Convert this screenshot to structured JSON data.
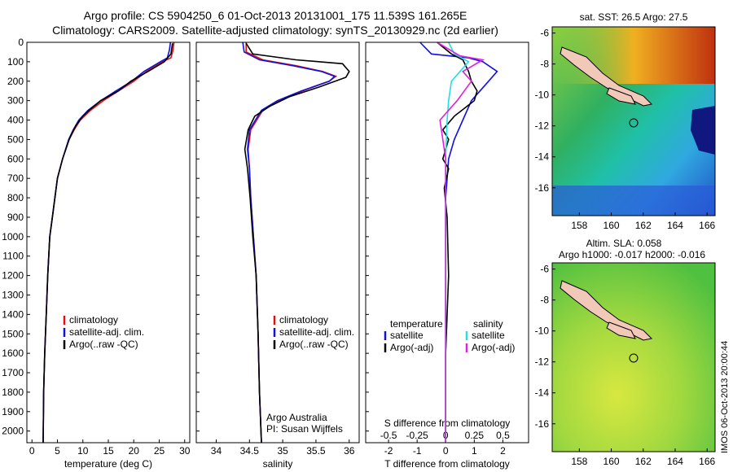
{
  "header": {
    "line1": "Argo profile: CS 5904250_6 01-Oct-2013 20131001_175 11.539S 161.265E",
    "line2": "Climatology: CARS2009. Satellite-adjusted climatology: synTS_20130929.nc (2d earlier)"
  },
  "side_label": "IMOS 06-Oct-2013 20:00:44",
  "map_sst": {
    "title": "sat. SST: 26.5 Argo: 27.5"
  },
  "map_sla": {
    "title1": "Altim. SLA: 0.058",
    "title2": "Argo h1000: -0.017 h2000: -0.016"
  },
  "colors": {
    "climatology": "#e01010",
    "satellite": "#1010e0",
    "argo": "#000000",
    "sal_satellite": "#20e0e0",
    "sal_argo": "#e020e0",
    "land": "#f2c8b8"
  },
  "chart_data": [
    {
      "type": "line",
      "xlabel": "temperature (deg C)",
      "xlim": [
        -1,
        31
      ],
      "ylim": [
        2060,
        0
      ],
      "xticks": [
        0,
        5,
        10,
        15,
        20,
        25,
        30
      ],
      "yticks": [
        0,
        100,
        200,
        300,
        400,
        500,
        600,
        700,
        800,
        900,
        1000,
        1100,
        1200,
        1300,
        1400,
        1500,
        1600,
        1700,
        1800,
        1900,
        2000
      ],
      "legend": [
        "climatology",
        "satellite-adj. clim.",
        "Argo(..raw -QC)"
      ],
      "series": [
        {
          "name": "climatology",
          "color": "#e01010",
          "x": [
            27.9,
            27.7,
            27.3,
            25.6,
            22.5,
            20.0,
            17.0,
            14.0,
            11.5,
            9.5,
            8.3,
            7.3,
            6.0,
            5.0,
            4.5,
            4.0,
            3.5,
            3.1,
            2.8,
            2.5,
            2.3,
            2.2
          ],
          "y": [
            0,
            40,
            80,
            100,
            150,
            200,
            250,
            300,
            350,
            400,
            450,
            500,
            600,
            700,
            800,
            900,
            1000,
            1200,
            1400,
            1600,
            1800,
            2060
          ]
        },
        {
          "name": "satellite-adj. clim.",
          "color": "#1010e0",
          "x": [
            27.2,
            27.0,
            26.6,
            25.2,
            22.0,
            19.6,
            16.5,
            13.5,
            11.0,
            9.2,
            8.1,
            7.2,
            6.0,
            5.0,
            4.5,
            4.0,
            3.5,
            3.1,
            2.8,
            2.5,
            2.3,
            2.2
          ],
          "y": [
            0,
            40,
            80,
            100,
            150,
            200,
            250,
            300,
            350,
            400,
            450,
            500,
            600,
            700,
            800,
            900,
            1000,
            1200,
            1400,
            1600,
            1800,
            2060
          ]
        },
        {
          "name": "Argo(..raw -QC)",
          "color": "#000000",
          "x": [
            27.6,
            27.3,
            26.0,
            22.8,
            19.4,
            17.0,
            13.5,
            11.2,
            10.0,
            8.6,
            8.0,
            7.3,
            6.0,
            5.0,
            4.5,
            4.0,
            3.5,
            3.1,
            2.8,
            2.5,
            2.3,
            2.2
          ],
          "y": [
            5,
            60,
            100,
            150,
            200,
            250,
            300,
            350,
            380,
            430,
            460,
            500,
            600,
            700,
            800,
            900,
            1000,
            1200,
            1400,
            1600,
            1800,
            2060
          ]
        }
      ]
    },
    {
      "type": "line",
      "xlabel": "salinity",
      "xlim": [
        33.7,
        36.15
      ],
      "ylim": [
        2060,
        0
      ],
      "xticks": [
        34,
        34.5,
        35,
        35.5,
        36
      ],
      "legend": [
        "climatology",
        "satellite-adj. clim.",
        "Argo(..raw -QC)"
      ],
      "annotation": [
        "Argo Australia",
        "PI: Susan Wijffels"
      ],
      "series": [
        {
          "name": "climatology",
          "color": "#e01010",
          "x": [
            34.45,
            34.45,
            34.7,
            35.2,
            35.6,
            35.8,
            35.7,
            35.3,
            34.95,
            34.7,
            34.52,
            34.48,
            34.5,
            34.52,
            34.56,
            34.6,
            34.63,
            34.65,
            34.68
          ],
          "y": [
            0,
            50,
            90,
            120,
            150,
            175,
            200,
            250,
            300,
            350,
            450,
            550,
            650,
            800,
            1000,
            1200,
            1500,
            1800,
            2060
          ]
        },
        {
          "name": "satellite-adj. clim.",
          "color": "#1010e0",
          "x": [
            34.4,
            34.42,
            34.65,
            35.15,
            35.58,
            35.78,
            35.7,
            35.28,
            34.92,
            34.68,
            34.5,
            34.47,
            34.5,
            34.52,
            34.56,
            34.6,
            34.63,
            34.65,
            34.68
          ],
          "y": [
            0,
            50,
            90,
            120,
            150,
            175,
            200,
            250,
            300,
            350,
            450,
            550,
            650,
            800,
            1000,
            1200,
            1500,
            1800,
            2060
          ]
        },
        {
          "name": "Argo(..raw -QC)",
          "color": "#000000",
          "x": [
            34.45,
            34.55,
            35.2,
            35.9,
            36.0,
            35.95,
            35.55,
            35.1,
            34.8,
            34.58,
            34.48,
            34.43,
            34.47,
            34.51,
            34.55,
            34.6,
            34.63,
            34.65,
            34.68
          ],
          "y": [
            5,
            60,
            90,
            110,
            150,
            180,
            230,
            280,
            330,
            380,
            450,
            550,
            650,
            800,
            1000,
            1200,
            1500,
            1800,
            2060
          ]
        }
      ]
    },
    {
      "type": "line",
      "xlabel": "T difference from climatology",
      "xlim": [
        -2.8,
        2.9
      ],
      "ylim": [
        2060,
        0
      ],
      "xticks": [
        -2,
        -1,
        0,
        1,
        2
      ],
      "top_axis_label": "S difference from climatology",
      "top_ticks": [
        "-0.5",
        "-0.25",
        "0",
        "0.25",
        "0.5"
      ],
      "legend_temperature_title": "temperature",
      "legend_salinity_title": "salinity",
      "legend": [
        "satellite",
        "Argo(-adj)",
        "satellite",
        "Argo(-adj)"
      ],
      "series": [
        {
          "name": "satellite",
          "color": "#1010e0",
          "x": [
            -0.9,
            -0.5,
            0.8,
            1.3,
            1.8,
            1.5,
            0.9,
            0.6,
            0.3,
            0.1,
            0.05,
            0,
            0,
            0
          ],
          "y": [
            0,
            60,
            80,
            100,
            150,
            200,
            300,
            400,
            500,
            600,
            700,
            800,
            1000,
            2060
          ]
        },
        {
          "name": "Argo(-adj)",
          "color": "#000000",
          "x": [
            -0.3,
            0.2,
            0.6,
            0.8,
            0.9,
            1.1,
            1.0,
            0.3,
            -0.1,
            0.1,
            -0.1,
            0.1,
            -0.05,
            0.05,
            0.1,
            0.05,
            0,
            0
          ],
          "y": [
            0,
            60,
            90,
            150,
            200,
            250,
            300,
            380,
            450,
            500,
            600,
            650,
            750,
            900,
            1200,
            1400,
            1600,
            2060
          ]
        },
        {
          "name": "satellite",
          "color": "#20e0e0",
          "x": [
            0.1,
            0.3,
            0.8,
            0.5,
            0.2,
            0.1,
            0.05,
            0,
            0,
            0
          ],
          "y": [
            0,
            60,
            100,
            150,
            200,
            300,
            400,
            600,
            1000,
            2060
          ]
        },
        {
          "name": "Argo(-adj)",
          "color": "#e020e0",
          "x": [
            -0.3,
            0.5,
            1.3,
            0.6,
            0.9,
            0.4,
            -0.2,
            -0.1,
            0,
            0
          ],
          "y": [
            0,
            70,
            90,
            150,
            200,
            300,
            400,
            500,
            600,
            2060
          ]
        }
      ]
    },
    {
      "type": "heatmap",
      "title": "sat. SST: 26.5 Argo: 27.5",
      "xlim": [
        156.3,
        166.5
      ],
      "ylim": [
        -17.8,
        -5.6
      ],
      "xticks": [
        158,
        160,
        162,
        164,
        166
      ],
      "yticks": [
        -6,
        -8,
        -10,
        -12,
        -14,
        -16
      ]
    },
    {
      "type": "heatmap",
      "title": "Altim. SLA: 0.058",
      "subtitle": "Argo h1000: -0.017 h2000: -0.016",
      "xlim": [
        156.3,
        166.5
      ],
      "ylim": [
        -17.8,
        -5.6
      ],
      "xticks": [
        158,
        160,
        162,
        164,
        166
      ],
      "yticks": [
        -6,
        -8,
        -10,
        -12,
        -14,
        -16
      ]
    }
  ]
}
